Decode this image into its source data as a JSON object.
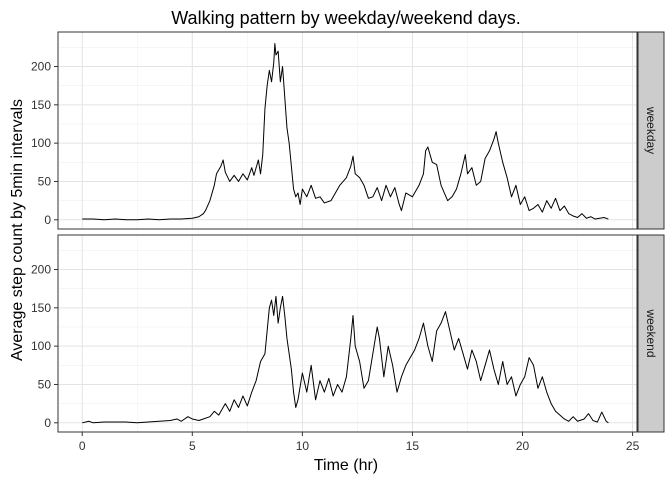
{
  "chart_data": {
    "type": "line",
    "title": "Walking pattern by weekday/weekend days.",
    "xlabel": "Time (hr)",
    "ylabel": "Average step count by 5min intervals",
    "xlim": [
      -1.1,
      25.2
    ],
    "ylim": [
      -12,
      245
    ],
    "x_ticks": [
      0,
      5,
      10,
      15,
      20,
      25
    ],
    "y_ticks": [
      0,
      50,
      100,
      150,
      200
    ],
    "grid": true,
    "line_color": "#000000",
    "panel_border_color": "#333333",
    "strip_fill": "#cccccc",
    "panels": [
      {
        "label": "weekday",
        "series": [
          {
            "x": 0,
            "y": 1
          },
          {
            "x": 0.5,
            "y": 1
          },
          {
            "x": 1,
            "y": 0
          },
          {
            "x": 1.5,
            "y": 1
          },
          {
            "x": 2,
            "y": 0
          },
          {
            "x": 2.5,
            "y": 0
          },
          {
            "x": 3,
            "y": 1
          },
          {
            "x": 3.5,
            "y": 0
          },
          {
            "x": 4,
            "y": 1
          },
          {
            "x": 4.5,
            "y": 1
          },
          {
            "x": 5,
            "y": 2
          },
          {
            "x": 5.3,
            "y": 4
          },
          {
            "x": 5.5,
            "y": 8
          },
          {
            "x": 5.6,
            "y": 12
          },
          {
            "x": 5.8,
            "y": 25
          },
          {
            "x": 6,
            "y": 45
          },
          {
            "x": 6.1,
            "y": 60
          },
          {
            "x": 6.3,
            "y": 70
          },
          {
            "x": 6.4,
            "y": 78
          },
          {
            "x": 6.5,
            "y": 62
          },
          {
            "x": 6.7,
            "y": 50
          },
          {
            "x": 6.9,
            "y": 58
          },
          {
            "x": 7.1,
            "y": 50
          },
          {
            "x": 7.3,
            "y": 60
          },
          {
            "x": 7.5,
            "y": 52
          },
          {
            "x": 7.7,
            "y": 68
          },
          {
            "x": 7.8,
            "y": 58
          },
          {
            "x": 8,
            "y": 78
          },
          {
            "x": 8.1,
            "y": 60
          },
          {
            "x": 8.2,
            "y": 85
          },
          {
            "x": 8.3,
            "y": 145
          },
          {
            "x": 8.4,
            "y": 175
          },
          {
            "x": 8.5,
            "y": 195
          },
          {
            "x": 8.6,
            "y": 180
          },
          {
            "x": 8.7,
            "y": 205
          },
          {
            "x": 8.75,
            "y": 230
          },
          {
            "x": 8.8,
            "y": 215
          },
          {
            "x": 8.9,
            "y": 220
          },
          {
            "x": 9,
            "y": 180
          },
          {
            "x": 9.1,
            "y": 200
          },
          {
            "x": 9.2,
            "y": 160
          },
          {
            "x": 9.3,
            "y": 120
          },
          {
            "x": 9.4,
            "y": 100
          },
          {
            "x": 9.5,
            "y": 70
          },
          {
            "x": 9.6,
            "y": 40
          },
          {
            "x": 9.7,
            "y": 30
          },
          {
            "x": 9.8,
            "y": 35
          },
          {
            "x": 9.9,
            "y": 20
          },
          {
            "x": 10,
            "y": 40
          },
          {
            "x": 10.2,
            "y": 30
          },
          {
            "x": 10.4,
            "y": 45
          },
          {
            "x": 10.6,
            "y": 28
          },
          {
            "x": 10.8,
            "y": 30
          },
          {
            "x": 11,
            "y": 22
          },
          {
            "x": 11.3,
            "y": 25
          },
          {
            "x": 11.5,
            "y": 35
          },
          {
            "x": 11.7,
            "y": 45
          },
          {
            "x": 12,
            "y": 55
          },
          {
            "x": 12.2,
            "y": 70
          },
          {
            "x": 12.3,
            "y": 83
          },
          {
            "x": 12.4,
            "y": 60
          },
          {
            "x": 12.6,
            "y": 55
          },
          {
            "x": 12.8,
            "y": 45
          },
          {
            "x": 13,
            "y": 28
          },
          {
            "x": 13.2,
            "y": 30
          },
          {
            "x": 13.4,
            "y": 42
          },
          {
            "x": 13.6,
            "y": 25
          },
          {
            "x": 13.8,
            "y": 45
          },
          {
            "x": 14,
            "y": 30
          },
          {
            "x": 14.2,
            "y": 42
          },
          {
            "x": 14.4,
            "y": 20
          },
          {
            "x": 14.5,
            "y": 12
          },
          {
            "x": 14.7,
            "y": 35
          },
          {
            "x": 15,
            "y": 30
          },
          {
            "x": 15.3,
            "y": 45
          },
          {
            "x": 15.5,
            "y": 60
          },
          {
            "x": 15.6,
            "y": 90
          },
          {
            "x": 15.7,
            "y": 95
          },
          {
            "x": 15.9,
            "y": 75
          },
          {
            "x": 16.1,
            "y": 72
          },
          {
            "x": 16.3,
            "y": 45
          },
          {
            "x": 16.6,
            "y": 25
          },
          {
            "x": 16.8,
            "y": 30
          },
          {
            "x": 17,
            "y": 40
          },
          {
            "x": 17.2,
            "y": 60
          },
          {
            "x": 17.4,
            "y": 85
          },
          {
            "x": 17.5,
            "y": 60
          },
          {
            "x": 17.7,
            "y": 68
          },
          {
            "x": 17.9,
            "y": 45
          },
          {
            "x": 18.1,
            "y": 50
          },
          {
            "x": 18.3,
            "y": 80
          },
          {
            "x": 18.5,
            "y": 90
          },
          {
            "x": 18.7,
            "y": 105
          },
          {
            "x": 18.8,
            "y": 115
          },
          {
            "x": 18.9,
            "y": 100
          },
          {
            "x": 19.1,
            "y": 75
          },
          {
            "x": 19.3,
            "y": 55
          },
          {
            "x": 19.5,
            "y": 30
          },
          {
            "x": 19.7,
            "y": 45
          },
          {
            "x": 19.9,
            "y": 20
          },
          {
            "x": 20.1,
            "y": 30
          },
          {
            "x": 20.3,
            "y": 12
          },
          {
            "x": 20.5,
            "y": 15
          },
          {
            "x": 20.7,
            "y": 20
          },
          {
            "x": 20.9,
            "y": 10
          },
          {
            "x": 21.1,
            "y": 25
          },
          {
            "x": 21.3,
            "y": 15
          },
          {
            "x": 21.5,
            "y": 28
          },
          {
            "x": 21.7,
            "y": 12
          },
          {
            "x": 21.9,
            "y": 18
          },
          {
            "x": 22.1,
            "y": 8
          },
          {
            "x": 22.3,
            "y": 5
          },
          {
            "x": 22.5,
            "y": 3
          },
          {
            "x": 22.7,
            "y": 8
          },
          {
            "x": 22.9,
            "y": 2
          },
          {
            "x": 23.1,
            "y": 4
          },
          {
            "x": 23.3,
            "y": 1
          },
          {
            "x": 23.5,
            "y": 2
          },
          {
            "x": 23.7,
            "y": 3
          },
          {
            "x": 23.9,
            "y": 1
          }
        ]
      },
      {
        "label": "weekend",
        "series": [
          {
            "x": 0,
            "y": 0
          },
          {
            "x": 0.3,
            "y": 2
          },
          {
            "x": 0.5,
            "y": 0
          },
          {
            "x": 1,
            "y": 1
          },
          {
            "x": 1.5,
            "y": 1
          },
          {
            "x": 2,
            "y": 1
          },
          {
            "x": 2.5,
            "y": 0
          },
          {
            "x": 3,
            "y": 1
          },
          {
            "x": 3.5,
            "y": 2
          },
          {
            "x": 4,
            "y": 3
          },
          {
            "x": 4.3,
            "y": 5
          },
          {
            "x": 4.5,
            "y": 2
          },
          {
            "x": 4.8,
            "y": 8
          },
          {
            "x": 5,
            "y": 5
          },
          {
            "x": 5.3,
            "y": 3
          },
          {
            "x": 5.5,
            "y": 5
          },
          {
            "x": 5.8,
            "y": 8
          },
          {
            "x": 6,
            "y": 15
          },
          {
            "x": 6.2,
            "y": 10
          },
          {
            "x": 6.5,
            "y": 25
          },
          {
            "x": 6.7,
            "y": 15
          },
          {
            "x": 6.9,
            "y": 30
          },
          {
            "x": 7.1,
            "y": 20
          },
          {
            "x": 7.3,
            "y": 35
          },
          {
            "x": 7.5,
            "y": 22
          },
          {
            "x": 7.7,
            "y": 40
          },
          {
            "x": 7.9,
            "y": 55
          },
          {
            "x": 8.1,
            "y": 80
          },
          {
            "x": 8.3,
            "y": 90
          },
          {
            "x": 8.4,
            "y": 120
          },
          {
            "x": 8.5,
            "y": 150
          },
          {
            "x": 8.6,
            "y": 160
          },
          {
            "x": 8.7,
            "y": 140
          },
          {
            "x": 8.8,
            "y": 165
          },
          {
            "x": 8.9,
            "y": 130
          },
          {
            "x": 9,
            "y": 150
          },
          {
            "x": 9.1,
            "y": 165
          },
          {
            "x": 9.2,
            "y": 140
          },
          {
            "x": 9.3,
            "y": 110
          },
          {
            "x": 9.4,
            "y": 90
          },
          {
            "x": 9.5,
            "y": 70
          },
          {
            "x": 9.6,
            "y": 40
          },
          {
            "x": 9.7,
            "y": 20
          },
          {
            "x": 9.8,
            "y": 30
          },
          {
            "x": 10,
            "y": 65
          },
          {
            "x": 10.2,
            "y": 40
          },
          {
            "x": 10.4,
            "y": 75
          },
          {
            "x": 10.6,
            "y": 30
          },
          {
            "x": 10.8,
            "y": 55
          },
          {
            "x": 11,
            "y": 40
          },
          {
            "x": 11.2,
            "y": 58
          },
          {
            "x": 11.4,
            "y": 35
          },
          {
            "x": 11.6,
            "y": 50
          },
          {
            "x": 11.8,
            "y": 40
          },
          {
            "x": 12,
            "y": 60
          },
          {
            "x": 12.2,
            "y": 110
          },
          {
            "x": 12.3,
            "y": 140
          },
          {
            "x": 12.4,
            "y": 100
          },
          {
            "x": 12.6,
            "y": 80
          },
          {
            "x": 12.8,
            "y": 45
          },
          {
            "x": 13,
            "y": 55
          },
          {
            "x": 13.2,
            "y": 90
          },
          {
            "x": 13.4,
            "y": 125
          },
          {
            "x": 13.5,
            "y": 110
          },
          {
            "x": 13.7,
            "y": 60
          },
          {
            "x": 13.9,
            "y": 100
          },
          {
            "x": 14.1,
            "y": 75
          },
          {
            "x": 14.3,
            "y": 40
          },
          {
            "x": 14.5,
            "y": 60
          },
          {
            "x": 14.7,
            "y": 75
          },
          {
            "x": 14.9,
            "y": 85
          },
          {
            "x": 15.1,
            "y": 95
          },
          {
            "x": 15.3,
            "y": 110
          },
          {
            "x": 15.5,
            "y": 130
          },
          {
            "x": 15.7,
            "y": 100
          },
          {
            "x": 15.9,
            "y": 80
          },
          {
            "x": 16.1,
            "y": 120
          },
          {
            "x": 16.3,
            "y": 130
          },
          {
            "x": 16.5,
            "y": 145
          },
          {
            "x": 16.7,
            "y": 120
          },
          {
            "x": 16.9,
            "y": 95
          },
          {
            "x": 17.1,
            "y": 110
          },
          {
            "x": 17.3,
            "y": 90
          },
          {
            "x": 17.5,
            "y": 70
          },
          {
            "x": 17.7,
            "y": 95
          },
          {
            "x": 17.9,
            "y": 80
          },
          {
            "x": 18.1,
            "y": 55
          },
          {
            "x": 18.3,
            "y": 75
          },
          {
            "x": 18.5,
            "y": 95
          },
          {
            "x": 18.7,
            "y": 70
          },
          {
            "x": 18.9,
            "y": 50
          },
          {
            "x": 19.1,
            "y": 80
          },
          {
            "x": 19.3,
            "y": 50
          },
          {
            "x": 19.5,
            "y": 60
          },
          {
            "x": 19.7,
            "y": 35
          },
          {
            "x": 19.9,
            "y": 50
          },
          {
            "x": 20.1,
            "y": 60
          },
          {
            "x": 20.3,
            "y": 85
          },
          {
            "x": 20.5,
            "y": 75
          },
          {
            "x": 20.7,
            "y": 45
          },
          {
            "x": 20.9,
            "y": 60
          },
          {
            "x": 21.1,
            "y": 40
          },
          {
            "x": 21.3,
            "y": 25
          },
          {
            "x": 21.5,
            "y": 15
          },
          {
            "x": 21.7,
            "y": 10
          },
          {
            "x": 21.9,
            "y": 5
          },
          {
            "x": 22.1,
            "y": 2
          },
          {
            "x": 22.3,
            "y": 8
          },
          {
            "x": 22.5,
            "y": 2
          },
          {
            "x": 22.8,
            "y": 5
          },
          {
            "x": 23,
            "y": 12
          },
          {
            "x": 23.2,
            "y": 3
          },
          {
            "x": 23.4,
            "y": 1
          },
          {
            "x": 23.6,
            "y": 14
          },
          {
            "x": 23.8,
            "y": 2
          },
          {
            "x": 23.9,
            "y": 0
          }
        ]
      }
    ]
  }
}
